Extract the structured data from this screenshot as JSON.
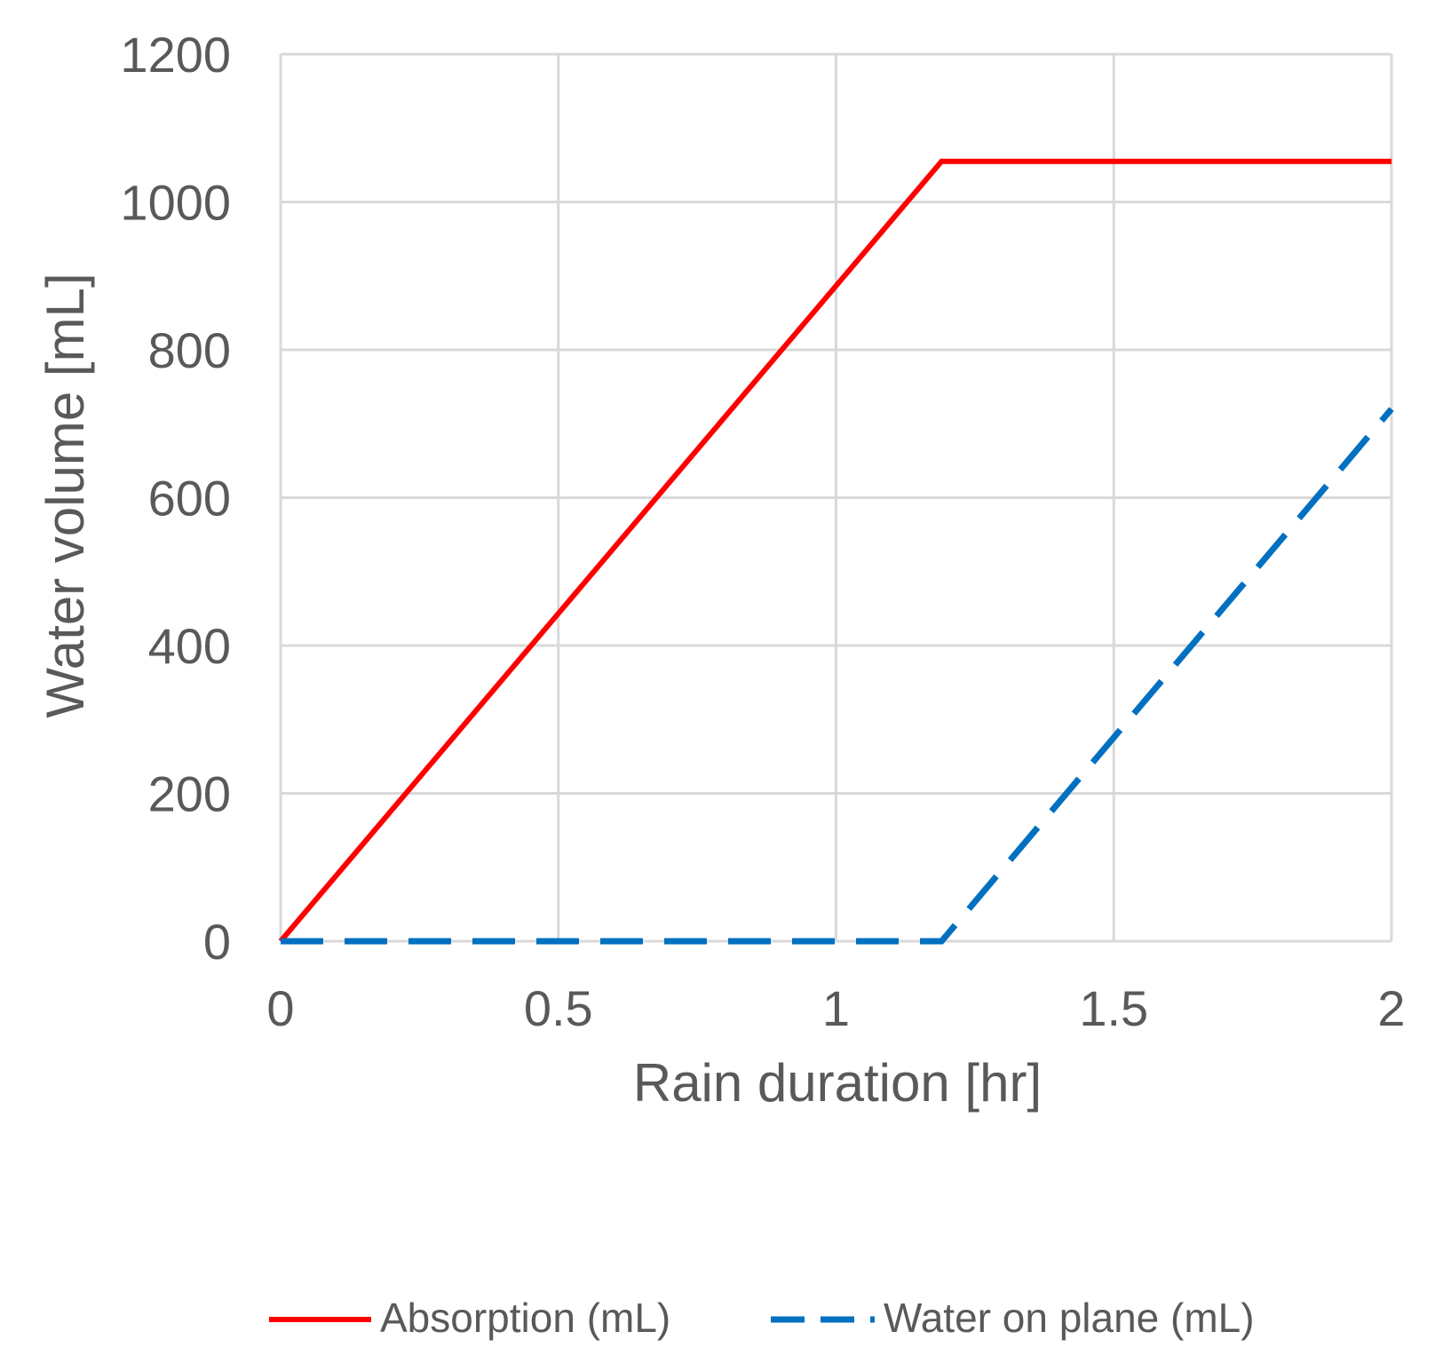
{
  "chart_data": {
    "type": "line",
    "title": "",
    "xlabel": "Rain duration [hr]",
    "ylabel": "Water volume [mL]",
    "xlim": [
      0,
      2
    ],
    "ylim": [
      0,
      1200
    ],
    "x_ticks": [
      "0",
      "0.5",
      "1",
      "1.5",
      "2"
    ],
    "y_ticks": [
      "0",
      "200",
      "400",
      "600",
      "800",
      "1000",
      "1200"
    ],
    "grid": true,
    "legend_position": "bottom",
    "series": [
      {
        "name": "Absorption (mL)",
        "color": "#ff0000",
        "style": "solid",
        "x": [
          0,
          1.19,
          2
        ],
        "y": [
          0,
          1055,
          1055
        ]
      },
      {
        "name": "Water on plane (mL)",
        "color": "#0070c0",
        "style": "dashed",
        "x": [
          0,
          1.19,
          2
        ],
        "y": [
          0,
          0,
          720
        ]
      }
    ]
  }
}
